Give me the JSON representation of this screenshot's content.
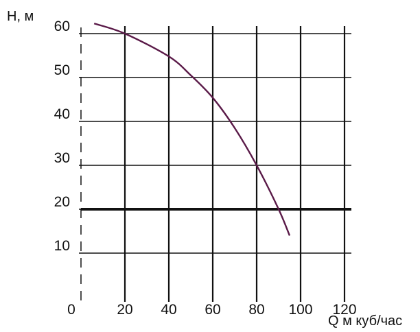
{
  "chart_data": {
    "type": "line",
    "ylabel": "H, м",
    "xlabel": "Q м куб/час",
    "x_ticks": [
      "0",
      "20",
      "40",
      "60",
      "80",
      "100",
      "120"
    ],
    "y_ticks": [
      "10",
      "20",
      "30",
      "40",
      "50",
      "60"
    ],
    "xlim": [
      0,
      120
    ],
    "ylim": [
      0,
      60
    ],
    "grid": true,
    "series": [
      {
        "color": "#5a1a48",
        "x": [
          6,
          20,
          40,
          50,
          60,
          70,
          80,
          90,
          95
        ],
        "y": [
          62.3,
          60,
          54.8,
          50.5,
          45.4,
          38.5,
          30,
          20,
          14
        ]
      }
    ],
    "reference_line": {
      "y": 20
    }
  }
}
